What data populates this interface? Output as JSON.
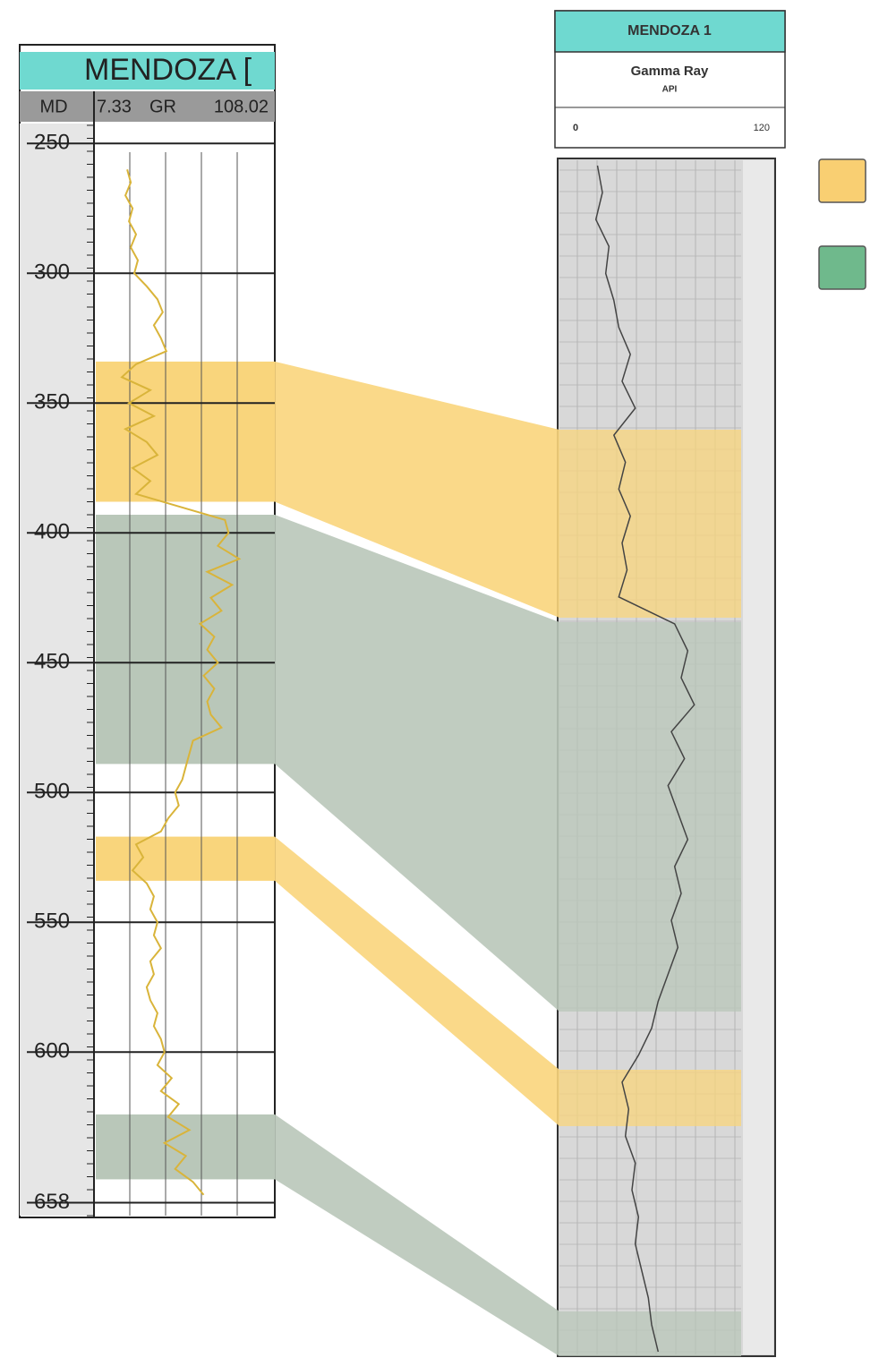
{
  "left_log": {
    "title": "MENDOZA [",
    "depth_label": "MD",
    "curve_label": "GR",
    "xlim": [
      7.33,
      108.02
    ],
    "ylim": [
      243,
      663
    ],
    "yticks": [
      250,
      300,
      350,
      400,
      450,
      500,
      550,
      600,
      658
    ],
    "curve_color": "#d9b43a",
    "zones": [
      {
        "top": 334,
        "base": 388,
        "color": "#f9d57c"
      },
      {
        "top": 393,
        "base": 489,
        "color": "#b9c7b9"
      },
      {
        "top": 517,
        "base": 534,
        "color": "#f9d57c"
      },
      {
        "top": 624,
        "base": 649,
        "color": "#b9c7b9"
      }
    ],
    "depth": [
      260,
      265,
      270,
      275,
      280,
      285,
      290,
      295,
      300,
      305,
      310,
      315,
      320,
      325,
      330,
      335,
      340,
      345,
      350,
      355,
      360,
      365,
      370,
      375,
      380,
      385,
      390,
      395,
      400,
      405,
      410,
      415,
      420,
      425,
      430,
      435,
      440,
      445,
      450,
      455,
      460,
      465,
      470,
      475,
      480,
      485,
      490,
      495,
      500,
      505,
      510,
      515,
      520,
      525,
      530,
      535,
      540,
      545,
      550,
      555,
      560,
      565,
      570,
      575,
      580,
      585,
      590,
      595,
      600,
      605,
      610,
      615,
      620,
      625,
      630,
      635,
      640,
      645,
      650,
      655
    ],
    "gr": [
      25,
      27,
      24,
      28,
      26,
      30,
      27,
      31,
      29,
      36,
      42,
      45,
      40,
      44,
      47,
      30,
      22,
      38,
      26,
      40,
      24,
      36,
      42,
      28,
      38,
      30,
      55,
      80,
      82,
      76,
      88,
      70,
      84,
      72,
      78,
      66,
      74,
      70,
      76,
      68,
      74,
      70,
      72,
      78,
      62,
      60,
      58,
      56,
      52,
      54,
      48,
      44,
      30,
      34,
      28,
      36,
      40,
      38,
      42,
      40,
      44,
      38,
      40,
      36,
      38,
      42,
      40,
      44,
      46,
      42,
      50,
      44,
      54,
      48,
      60,
      46,
      58,
      52,
      62,
      68
    ]
  },
  "right_log": {
    "title": "MENDOZA 1",
    "curve": "Gamma Ray",
    "unit": "API",
    "xlim": [
      0,
      120
    ],
    "curve_color": "#444444",
    "gr": [
      15,
      18,
      14,
      22,
      20,
      25,
      28,
      35,
      30,
      38,
      25,
      32,
      28,
      35,
      30,
      33,
      28,
      62,
      70,
      66,
      74,
      60,
      68,
      58,
      64,
      70,
      62,
      66,
      60,
      64,
      58,
      52,
      48,
      40,
      30,
      34,
      32,
      38,
      36,
      40,
      38,
      42,
      46,
      48,
      52
    ]
  },
  "legend": [
    {
      "color": "#f9cf72"
    },
    {
      "color": "#6fb98c"
    }
  ]
}
